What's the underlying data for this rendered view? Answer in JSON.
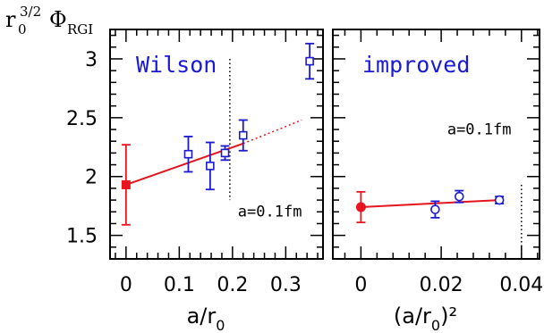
{
  "ylabel": {
    "r": "r",
    "sub": "0",
    "sup": "3/2",
    "phi": "Φ",
    "phi_sub": "RGI"
  },
  "colors": {
    "blue": "#1a1ad6",
    "red": "#e8141e",
    "black": "#000000"
  },
  "chart_data": [
    {
      "type": "scatter",
      "title": "Wilson",
      "xlabel": {
        "main": "a/r",
        "sub": "0",
        "sup": ""
      },
      "xlim": [
        -0.03,
        0.37
      ],
      "ylim": [
        1.3,
        3.25
      ],
      "xticks": [
        0,
        0.1,
        0.2,
        0.3
      ],
      "xtick_labels": [
        "0",
        "0.1",
        "0.2",
        "0.3"
      ],
      "yticks": [
        1.5,
        2,
        2.5,
        3
      ],
      "ytick_labels": [
        "1.5",
        "2",
        "2.5",
        "3"
      ],
      "ytick_minor_step": 0.1,
      "xtick_minor_step": 0.02,
      "series": [
        {
          "marker": "open-square",
          "color": "#1a1ad6",
          "points": [
            {
              "x": 0.117,
              "y": 2.19,
              "err": 0.15
            },
            {
              "x": 0.158,
              "y": 2.09,
              "err": 0.2
            },
            {
              "x": 0.186,
              "y": 2.2,
              "err": 0.06
            },
            {
              "x": 0.22,
              "y": 2.35,
              "err": 0.13
            },
            {
              "x": 0.345,
              "y": 2.98,
              "err": 0.15
            }
          ]
        },
        {
          "marker": "filled-square",
          "color": "#e8141e",
          "points": [
            {
              "x": 0.0,
              "y": 1.93,
              "err": 0.34
            }
          ]
        }
      ],
      "fit": {
        "x0": 0.0,
        "y0": 1.93,
        "x_solid_end": 0.22,
        "y_solid_end": 2.28,
        "x_dash_end": 0.33,
        "y_dash_end": 2.48
      },
      "vline": {
        "x": 0.195,
        "y_from": 1.8,
        "y_to": 3.0
      },
      "annotation": "a=0.1fm",
      "annotation_anchor": {
        "x": 0.21,
        "y": 1.66
      }
    },
    {
      "type": "scatter",
      "title": "improved",
      "xlabel": {
        "main": "(a/r",
        "sub": "0",
        "sup": ")²"
      },
      "xlim": [
        -0.007,
        0.0445
      ],
      "ylim": [
        1.3,
        3.25
      ],
      "xticks": [
        0,
        0.02,
        0.04
      ],
      "xtick_labels": [
        "0",
        "0.02",
        "0.04"
      ],
      "yticks": [
        1.5,
        2,
        2.5,
        3
      ],
      "ytick_minor_step": 0.1,
      "xtick_minor_step": 0.004,
      "series": [
        {
          "marker": "open-circle",
          "color": "#1a1ad6",
          "points": [
            {
              "x": 0.0185,
              "y": 1.72,
              "err": 0.07
            },
            {
              "x": 0.0245,
              "y": 1.83,
              "err": 0.05
            },
            {
              "x": 0.0345,
              "y": 1.8,
              "err": 0.03
            }
          ]
        },
        {
          "marker": "filled-circle",
          "color": "#e8141e",
          "points": [
            {
              "x": 0.0,
              "y": 1.74,
              "err": 0.13
            }
          ]
        }
      ],
      "fit": {
        "x0": 0.0,
        "y0": 1.74,
        "x_solid_end": 0.0345,
        "y_solid_end": 1.8
      },
      "vline": {
        "x": 0.04,
        "y_from": 1.3,
        "y_to": 1.93
      },
      "annotation": "a=0.1fm",
      "annotation_anchor": {
        "x": 0.0215,
        "y": 2.36
      }
    }
  ]
}
